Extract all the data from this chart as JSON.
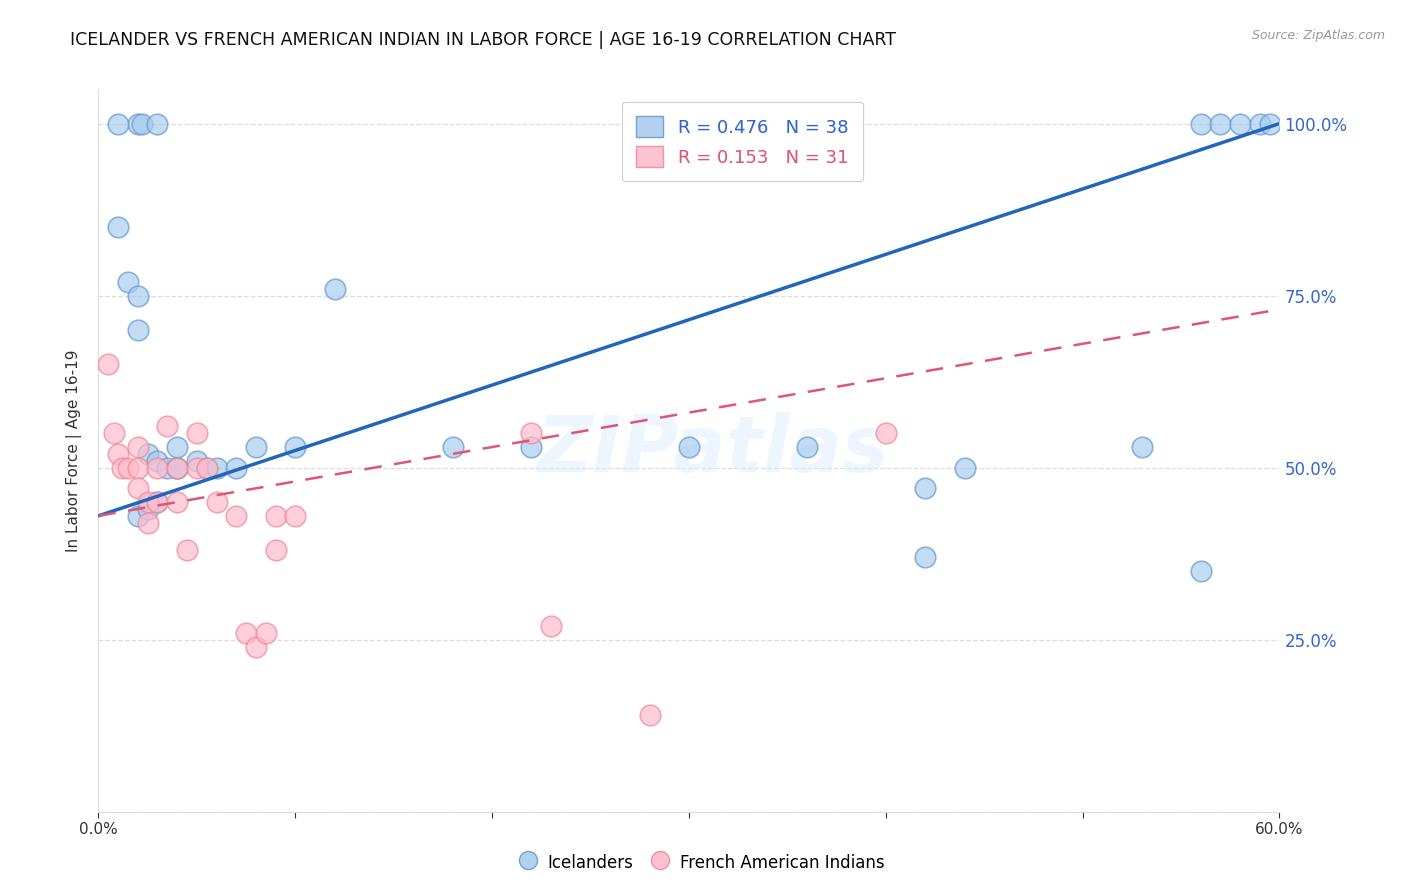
{
  "title": "ICELANDER VS FRENCH AMERICAN INDIAN IN LABOR FORCE | AGE 16-19 CORRELATION CHART",
  "source": "Source: ZipAtlas.com",
  "ylabel": "In Labor Force | Age 16-19",
  "xlim": [
    0.0,
    0.6
  ],
  "ylim": [
    0.0,
    1.05
  ],
  "blue_color": "#AACCEE",
  "blue_edge_color": "#6699CC",
  "pink_color": "#FFBBCC",
  "pink_edge_color": "#EE8899",
  "blue_line_color": "#2266BB",
  "pink_line_color": "#DD5577",
  "legend_blue_R": "0.476",
  "legend_blue_N": "38",
  "legend_pink_R": "0.153",
  "legend_pink_N": "31",
  "watermark": "ZIPatlas",
  "legend_label_blue": "Icelanders",
  "legend_label_pink": "French American Indians",
  "blue_scatter_x": [
    0.02,
    0.022,
    0.03,
    0.01,
    0.01,
    0.015,
    0.02,
    0.02,
    0.025,
    0.03,
    0.035,
    0.04,
    0.04,
    0.05,
    0.055,
    0.06,
    0.07,
    0.08,
    0.1,
    0.12,
    0.18,
    0.22,
    0.3,
    0.36,
    0.42,
    0.42,
    0.44,
    0.53,
    0.56,
    0.56,
    0.57,
    0.58,
    0.59,
    0.595,
    0.02,
    0.025,
    0.03,
    0.04
  ],
  "blue_scatter_y": [
    1.0,
    1.0,
    1.0,
    1.0,
    0.85,
    0.77,
    0.75,
    0.7,
    0.52,
    0.51,
    0.5,
    0.5,
    0.53,
    0.51,
    0.5,
    0.5,
    0.5,
    0.53,
    0.53,
    0.76,
    0.53,
    0.53,
    0.53,
    0.53,
    0.47,
    0.37,
    0.5,
    0.53,
    0.35,
    1.0,
    1.0,
    1.0,
    1.0,
    1.0,
    0.43,
    0.44,
    0.45,
    0.5
  ],
  "pink_scatter_x": [
    0.005,
    0.008,
    0.01,
    0.012,
    0.015,
    0.02,
    0.02,
    0.02,
    0.025,
    0.025,
    0.03,
    0.03,
    0.035,
    0.04,
    0.04,
    0.045,
    0.05,
    0.05,
    0.055,
    0.06,
    0.07,
    0.075,
    0.08,
    0.085,
    0.09,
    0.09,
    0.1,
    0.22,
    0.23,
    0.28,
    0.4
  ],
  "pink_scatter_y": [
    0.65,
    0.55,
    0.52,
    0.5,
    0.5,
    0.53,
    0.5,
    0.47,
    0.45,
    0.42,
    0.5,
    0.45,
    0.56,
    0.45,
    0.5,
    0.38,
    0.55,
    0.5,
    0.5,
    0.45,
    0.43,
    0.26,
    0.24,
    0.26,
    0.43,
    0.38,
    0.43,
    0.55,
    0.27,
    0.14,
    0.55
  ],
  "background_color": "#FFFFFF",
  "grid_color": "#DDDDDD",
  "title_color": "#111111",
  "axis_label_color": "#333333",
  "tick_color_right": "#3366CC",
  "right_tick_labels": [
    "",
    "25.0%",
    "50.0%",
    "75.0%",
    "100.0%"
  ],
  "right_yticks": [
    0.0,
    0.25,
    0.5,
    0.75,
    1.0
  ],
  "xtick_labels": [
    "0.0%",
    "",
    "",
    "",
    "",
    "",
    "60.0%"
  ],
  "xticks": [
    0.0,
    0.1,
    0.2,
    0.3,
    0.4,
    0.5,
    0.6
  ],
  "blue_regline_x": [
    0.0,
    0.6
  ],
  "blue_regline_y": [
    0.43,
    1.0
  ],
  "pink_regline_x": [
    0.0,
    0.6
  ],
  "pink_regline_y": [
    0.43,
    0.73
  ]
}
